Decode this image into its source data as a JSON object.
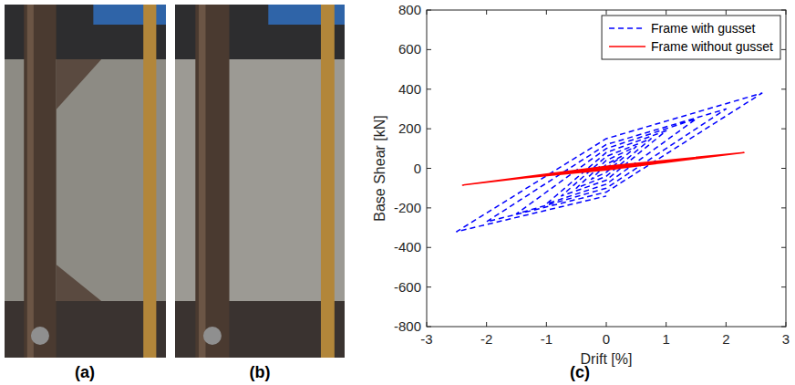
{
  "chart_data": {
    "type": "line",
    "x_label": "Drift [%]",
    "y_label": "Base Shear [kN]",
    "xlim": [
      -3,
      3
    ],
    "xticks": [
      -3,
      -2,
      -1,
      0,
      1,
      2,
      3
    ],
    "ylim": [
      -800,
      800
    ],
    "yticks": [
      -800,
      -600,
      -400,
      -200,
      0,
      200,
      400,
      600,
      800
    ],
    "grid": false,
    "legend": "upper right",
    "series": [
      {
        "name": "Frame with gusset",
        "color": "#0000ff",
        "line_style": "dashed",
        "x": [
          0,
          0.25,
          0,
          -0.25,
          0,
          0.5,
          0,
          -0.5,
          0,
          0.75,
          0,
          -0.75,
          0,
          1,
          0,
          -1,
          0,
          1.5,
          0,
          -1.5,
          0,
          2,
          0,
          -2,
          0,
          2.6,
          0,
          -2.5,
          0
        ],
        "values": [
          0,
          60,
          20,
          -55,
          -20,
          110,
          40,
          -100,
          -40,
          150,
          60,
          -140,
          -60,
          190,
          80,
          -180,
          -80,
          250,
          100,
          -230,
          -100,
          300,
          120,
          -270,
          -120,
          380,
          150,
          -320,
          -140
        ]
      },
      {
        "name": "Frame without gusset",
        "color": "#ff0000",
        "line_style": "solid",
        "x": [
          0,
          0.5,
          0,
          -0.5,
          0,
          1,
          0,
          -1,
          0,
          1.5,
          0,
          -1.5,
          0,
          2.3,
          0,
          -2.4,
          0
        ],
        "values": [
          0,
          15,
          3,
          -15,
          -3,
          30,
          5,
          -32,
          -5,
          50,
          8,
          -52,
          -8,
          80,
          10,
          -85,
          0
        ]
      }
    ]
  },
  "panel_labels": [
    "(a)",
    "(b)",
    "(c)"
  ]
}
